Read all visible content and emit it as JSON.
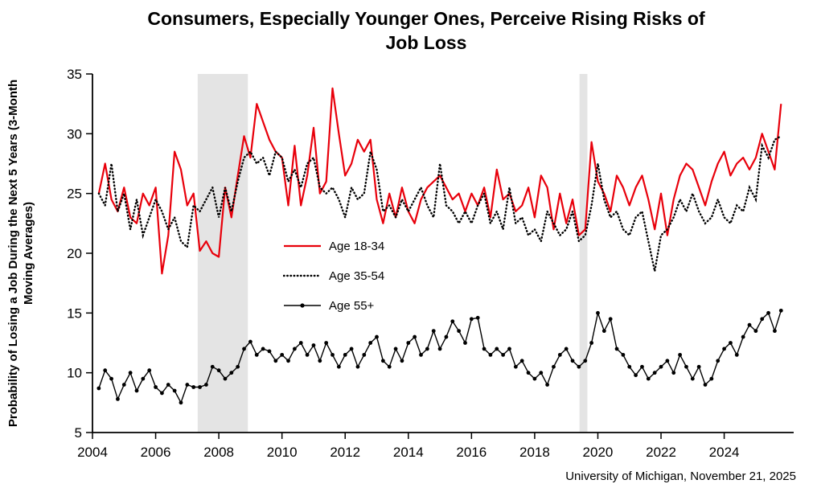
{
  "page": {
    "title": "Consumers, Especially Younger Ones, Perceive Rising Risks of Job Loss",
    "source_note": "University of Michigan, November 21, 2025"
  },
  "chart_data": {
    "type": "line",
    "title": "Consumers, Especially Younger Ones, Perceive Rising Risks of Job Loss",
    "xlabel": "",
    "ylabel": "Probability of Losing a Job During the Next 5 Years (3-Month Moving Averages)",
    "xlim": [
      2004,
      2026.2
    ],
    "ylim": [
      5,
      35
    ],
    "xticks": [
      2004,
      2006,
      2008,
      2010,
      2012,
      2014,
      2016,
      2018,
      2020,
      2022,
      2024
    ],
    "yticks": [
      5,
      10,
      15,
      20,
      25,
      30,
      35
    ],
    "grid": false,
    "legend_position": "inside-center-left",
    "recession_bands": [
      [
        2007.33,
        2008.92
      ],
      [
        2019.42,
        2019.67
      ]
    ],
    "band_color": "#e4e4e4",
    "x": [
      2004.2,
      2004.4,
      2004.6,
      2004.8,
      2005.0,
      2005.2,
      2005.4,
      2005.6,
      2005.8,
      2006.0,
      2006.2,
      2006.4,
      2006.6,
      2006.8,
      2007.0,
      2007.2,
      2007.4,
      2007.6,
      2007.8,
      2008.0,
      2008.2,
      2008.4,
      2008.6,
      2008.8,
      2009.0,
      2009.2,
      2009.4,
      2009.6,
      2009.8,
      2010.0,
      2010.2,
      2010.4,
      2010.6,
      2010.8,
      2011.0,
      2011.2,
      2011.4,
      2011.6,
      2011.8,
      2012.0,
      2012.2,
      2012.4,
      2012.6,
      2012.8,
      2013.0,
      2013.2,
      2013.4,
      2013.6,
      2013.8,
      2014.0,
      2014.2,
      2014.4,
      2014.6,
      2014.8,
      2015.0,
      2015.2,
      2015.4,
      2015.6,
      2015.8,
      2016.0,
      2016.2,
      2016.4,
      2016.6,
      2016.8,
      2017.0,
      2017.2,
      2017.4,
      2017.6,
      2017.8,
      2018.0,
      2018.2,
      2018.4,
      2018.6,
      2018.8,
      2019.0,
      2019.2,
      2019.4,
      2019.6,
      2019.8,
      2020.0,
      2020.2,
      2020.4,
      2020.6,
      2020.8,
      2021.0,
      2021.2,
      2021.4,
      2021.6,
      2021.8,
      2022.0,
      2022.2,
      2022.4,
      2022.6,
      2022.8,
      2023.0,
      2023.2,
      2023.4,
      2023.6,
      2023.8,
      2024.0,
      2024.2,
      2024.4,
      2024.6,
      2024.8,
      2025.0,
      2025.2,
      2025.4,
      2025.6,
      2025.8
    ],
    "series": [
      {
        "name": "Age 18-34",
        "color": "#e8000b",
        "style": "solid",
        "values": [
          25.0,
          27.5,
          24.5,
          23.5,
          25.5,
          23.0,
          22.5,
          25.0,
          24.0,
          25.5,
          18.3,
          21.5,
          28.5,
          27.0,
          24.0,
          25.0,
          20.2,
          21.0,
          20.0,
          19.7,
          25.5,
          23.0,
          26.5,
          29.8,
          28.0,
          32.5,
          31.0,
          29.5,
          28.5,
          28.0,
          24.0,
          29.0,
          24.0,
          26.5,
          30.5,
          25.0,
          26.0,
          33.8,
          30.0,
          26.5,
          27.5,
          29.5,
          28.5,
          29.5,
          24.5,
          22.5,
          25.0,
          23.0,
          25.5,
          23.5,
          22.5,
          24.5,
          25.5,
          26.0,
          26.5,
          25.5,
          24.5,
          25.0,
          23.5,
          25.0,
          24.0,
          25.5,
          23.0,
          27.0,
          24.5,
          25.0,
          23.5,
          24.0,
          25.5,
          23.0,
          26.5,
          25.5,
          22.0,
          25.0,
          22.5,
          24.5,
          21.5,
          22.0,
          29.3,
          26.0,
          25.0,
          23.5,
          26.5,
          25.5,
          24.0,
          25.5,
          26.5,
          24.5,
          22.0,
          25.0,
          21.5,
          24.5,
          26.5,
          27.5,
          27.0,
          25.5,
          24.0,
          26.0,
          27.5,
          28.5,
          26.5,
          27.5,
          28.0,
          27.0,
          28.0,
          30.0,
          28.5,
          27.0,
          32.5
        ]
      },
      {
        "name": "Age 35-54",
        "color": "#000000",
        "style": "dotted",
        "values": [
          25.0,
          24.0,
          27.5,
          23.5,
          25.0,
          22.0,
          24.5,
          21.5,
          23.0,
          24.5,
          23.5,
          22.0,
          23.0,
          21.0,
          20.5,
          24.0,
          23.5,
          24.5,
          25.5,
          23.0,
          25.5,
          23.5,
          26.0,
          28.0,
          28.5,
          27.5,
          28.0,
          26.5,
          28.5,
          28.0,
          26.0,
          27.0,
          25.5,
          27.5,
          28.0,
          25.5,
          25.0,
          25.5,
          24.5,
          23.0,
          25.5,
          24.5,
          25.0,
          28.5,
          27.0,
          23.5,
          24.0,
          23.0,
          24.5,
          23.5,
          24.5,
          25.5,
          24.0,
          23.0,
          27.5,
          24.0,
          23.5,
          22.5,
          23.5,
          22.5,
          24.0,
          25.0,
          22.5,
          23.5,
          22.0,
          25.5,
          22.5,
          23.0,
          21.5,
          22.0,
          21.0,
          23.5,
          22.5,
          21.5,
          22.0,
          23.5,
          21.0,
          21.5,
          24.0,
          27.5,
          24.5,
          23.0,
          23.5,
          22.0,
          21.5,
          23.0,
          23.5,
          21.0,
          18.5,
          21.5,
          22.0,
          23.0,
          24.5,
          23.5,
          25.0,
          23.5,
          22.5,
          23.0,
          24.5,
          23.0,
          22.5,
          24.0,
          23.5,
          25.5,
          24.5,
          29.0,
          28.0,
          29.5,
          29.8
        ]
      },
      {
        "name": "Age 55+",
        "color": "#000000",
        "style": "solid-markers",
        "values": [
          8.7,
          10.2,
          9.5,
          7.8,
          9.0,
          10.0,
          8.5,
          9.5,
          10.2,
          8.8,
          8.3,
          9.0,
          8.5,
          7.5,
          9.0,
          8.8,
          8.8,
          9.0,
          10.5,
          10.2,
          9.5,
          10.0,
          10.5,
          12.0,
          12.6,
          11.5,
          12.0,
          11.8,
          11.0,
          11.5,
          11.0,
          12.0,
          12.5,
          11.5,
          12.3,
          11.0,
          12.5,
          11.5,
          10.5,
          11.5,
          12.0,
          10.5,
          11.5,
          12.5,
          13.0,
          11.0,
          10.5,
          12.0,
          11.0,
          12.5,
          13.0,
          11.5,
          12.0,
          13.5,
          12.0,
          13.0,
          14.3,
          13.5,
          12.5,
          14.5,
          14.6,
          12.0,
          11.5,
          12.0,
          11.5,
          12.0,
          10.5,
          11.0,
          10.0,
          9.5,
          10.0,
          9.0,
          10.5,
          11.5,
          12.0,
          11.0,
          10.5,
          11.0,
          12.5,
          15.0,
          13.5,
          14.5,
          12.0,
          11.5,
          10.5,
          9.8,
          10.5,
          9.5,
          10.0,
          10.5,
          11.0,
          10.0,
          11.5,
          10.5,
          9.5,
          10.5,
          9.0,
          9.5,
          11.0,
          12.0,
          12.5,
          11.5,
          13.0,
          14.0,
          13.5,
          14.5,
          15.0,
          13.5,
          15.2
        ]
      }
    ],
    "source_note": "University of Michigan, November 21, 2025"
  }
}
